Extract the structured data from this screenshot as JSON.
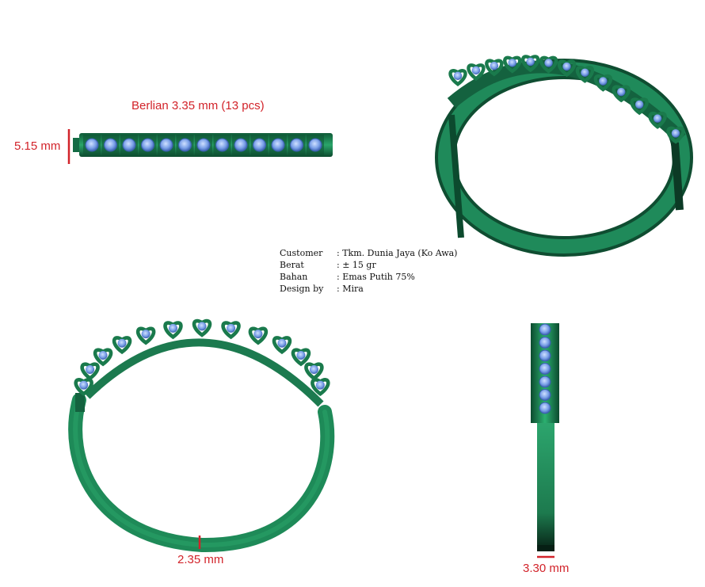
{
  "labels": {
    "diamond": "Berlian 3.35 mm (13 pcs)",
    "height": "5.15 mm",
    "thickness": "2.35 mm",
    "width": "3.30 mm"
  },
  "spec": [
    {
      "key": "Customer",
      "value": ": Tkm. Dunia Jaya (Ko Awa)"
    },
    {
      "key": "Berat",
      "value": ": ± 15 gr"
    },
    {
      "key": "Bahan",
      "value": ": Emas Putih 75%"
    },
    {
      "key": "Design by",
      "value": ": Mira"
    }
  ],
  "colors": {
    "metal": "#1f8a5a",
    "metal_dark": "#0f4d31",
    "stone": "#7aa0e8",
    "dimension": "#d2232a"
  },
  "diamond_count": 13
}
